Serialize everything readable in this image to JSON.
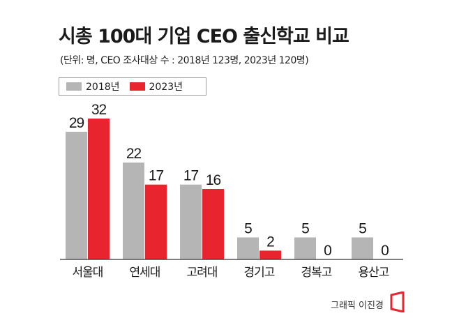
{
  "chart_data": {
    "type": "bar",
    "title": "시총 100대 기업 CEO 출신학교 비교",
    "subtitle": "(단위: 명,  CEO 조사대상 수 : 2018년 123명, 2023년 120명)",
    "categories": [
      "서울대",
      "연세대",
      "고려대",
      "경기고",
      "경복고",
      "용산고"
    ],
    "series": [
      {
        "name": "2018년",
        "color": "#b5b5b5",
        "values": [
          29,
          22,
          17,
          5,
          5,
          5
        ]
      },
      {
        "name": "2023년",
        "color": "#e8252e",
        "values": [
          32,
          17,
          16,
          2,
          0,
          0
        ]
      }
    ],
    "ylim": [
      0,
      32
    ],
    "xlabel": "",
    "ylabel": "",
    "legend_position": "top-left",
    "grid": false
  },
  "credit": "그래픽 이진경",
  "colors": {
    "axis": "#333333",
    "text": "#1a1a1a",
    "accent": "#e8252e"
  }
}
